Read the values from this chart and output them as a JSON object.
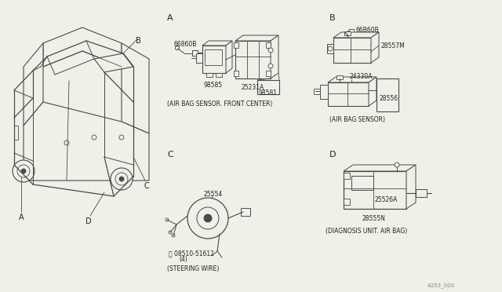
{
  "bg_color": "#f0efe8",
  "line_color": "#4a4a4a",
  "text_color": "#222222",
  "section_labels": [
    "A",
    "B",
    "C",
    "D"
  ],
  "section_A_label": "(AIR BAG SENSOR. FRONT CENTER)",
  "section_B_label": "(AIR BAG SENSOR)",
  "section_C_label": "(STEERING WIRE)",
  "section_D_label": "(DIAGNOSIS UNIT. AIR BAG)",
  "part_A": [
    "66860B",
    "25231A",
    "98585",
    "98581"
  ],
  "part_B": [
    "66B60B",
    "28557M",
    "24330A",
    "28556"
  ],
  "part_C": [
    "25554",
    "08510-51612",
    "(4)"
  ],
  "part_D": [
    "25526A",
    "28555N"
  ],
  "car_labels": [
    "A",
    "B",
    "C",
    "D"
  ],
  "footer": "A353_000"
}
